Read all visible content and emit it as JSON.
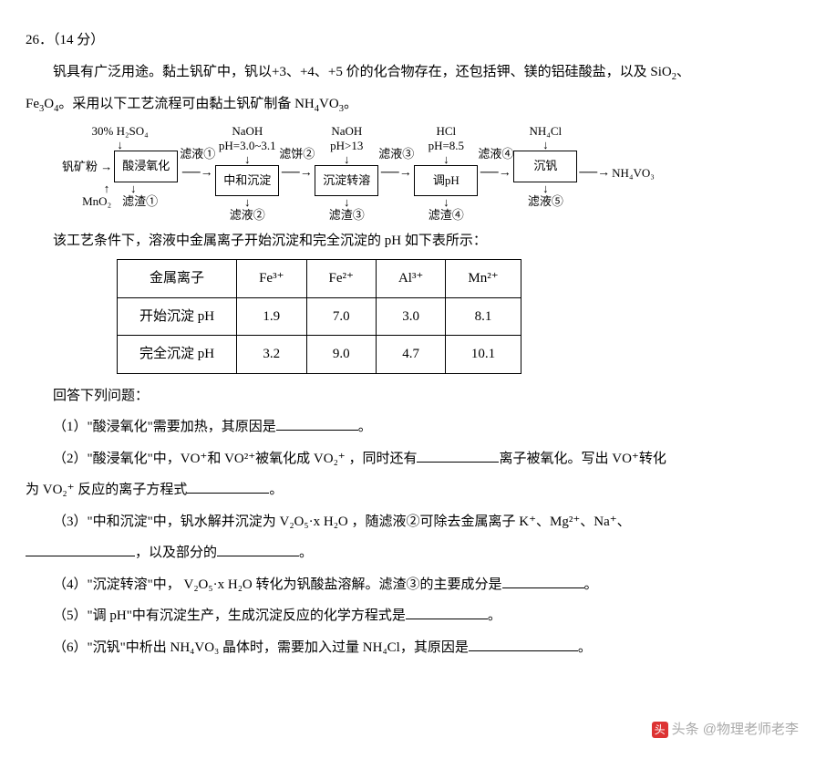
{
  "header": {
    "num": "26．（14 分）"
  },
  "intro1": "钒具有广泛用途。黏土钒矿中，钒以+3、+4、+5 价的化合物存在，还包括钾、镁的铝硅酸盐，以及 SiO",
  "intro1b": "、",
  "intro2": "Fe",
  "intro2b": "O",
  "intro2c": "。采用以下工艺流程可由黏土钒矿制备 NH",
  "intro2d": "VO",
  "intro2e": "。",
  "flow": {
    "in_left_top": "30% H₂SO₄",
    "in_left_side": "钒矿粉",
    "in_left_bot": "MnO₂",
    "box1": "酸浸氧化",
    "a1top": "滤液①",
    "b1bot": "滤渣①",
    "box2_top1": "NaOH",
    "box2_top2": "pH=3.0~3.1",
    "box2": "中和沉淀",
    "a2top": "滤饼②",
    "b2bot": "滤液②",
    "box3_top1": "NaOH",
    "box3_top2": "pH>13",
    "box3": "沉淀转溶",
    "a3top": "滤液③",
    "b3bot": "滤渣③",
    "box4_top1": "HCl",
    "box4_top2": "pH=8.5",
    "box4": "调pH",
    "a4top": "滤液④",
    "b4bot": "滤渣④",
    "box5_top": "NH₄Cl",
    "box5": "沉钒",
    "out": "NH₄VO₃",
    "b5bot": "滤液⑤"
  },
  "tabintro": "该工艺条件下，溶液中金属离子开始沉淀和完全沉淀的 pH 如下表所示：",
  "table": {
    "h0": "金属离子",
    "h1": "Fe³⁺",
    "h2": "Fe²⁺",
    "h3": "Al³⁺",
    "h4": "Mn²⁺",
    "r1c0": "开始沉淀 pH",
    "r1c1": "1.9",
    "r1c2": "7.0",
    "r1c3": "3.0",
    "r1c4": "8.1",
    "r2c0": "完全沉淀 pH",
    "r2c1": "3.2",
    "r2c2": "9.0",
    "r2c3": "4.7",
    "r2c4": "10.1"
  },
  "qintro": "回答下列问题：",
  "q1": "（1）\"酸浸氧化\"需要加热，其原因是",
  "q1end": "。",
  "q2a": "（2）\"酸浸氧化\"中，VO⁺和 VO²⁺被氧化成 VO₂⁺ ，同时还有",
  "q2b": "离子被氧化。写出 VO⁺转化",
  "q2c": "为 VO₂⁺ 反应的离子方程式",
  "q2end": "。",
  "q3a": "（3）\"中和沉淀\"中，钒水解并沉淀为 V₂O₅·x H₂O ，随滤液②可除去金属离子 K⁺、Mg²⁺、Na⁺、",
  "q3b": "，以及部分的",
  "q3end": "。",
  "q4": "（4）\"沉淀转溶\"中， V₂O₅·x H₂O 转化为钒酸盐溶解。滤渣③的主要成分是",
  "q4end": "。",
  "q5": "（5）\"调 pH\"中有沉淀生产，生成沉淀反应的化学方程式是",
  "q5end": "。",
  "q6": "（6）\"沉钒\"中析出 NH₄VO₃ 晶体时，需要加入过量 NH₄Cl，其原因是",
  "q6end": "。",
  "watermark": "头条 @物理老师老李"
}
